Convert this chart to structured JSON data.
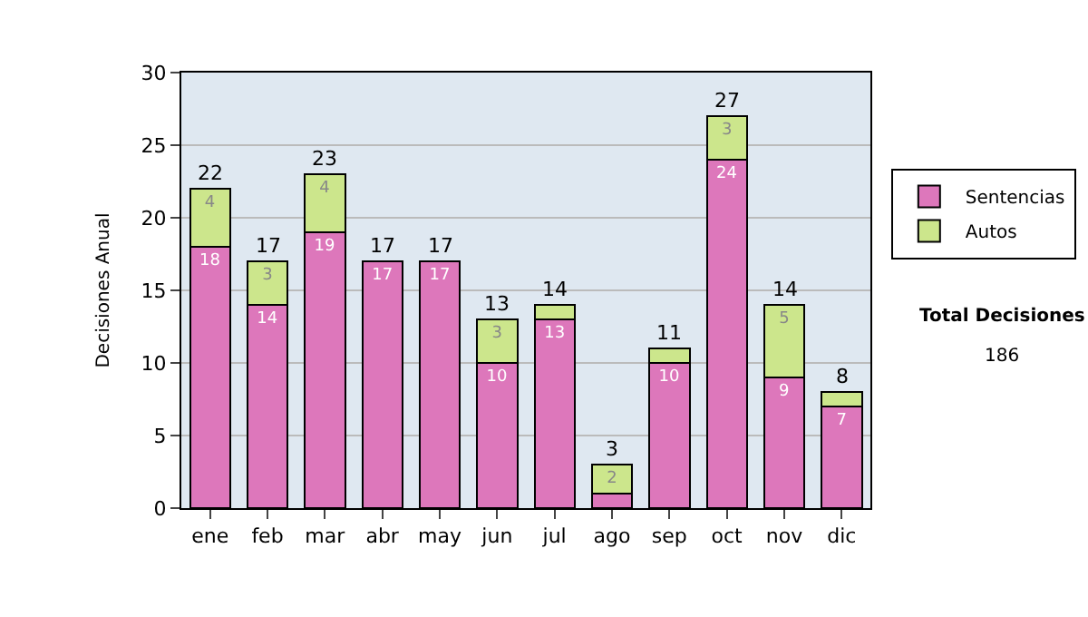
{
  "chart_data": {
    "type": "bar",
    "stacked": true,
    "ylabel": "Decisiones Anual",
    "categories": [
      "ene",
      "feb",
      "mar",
      "abr",
      "may",
      "jun",
      "jul",
      "ago",
      "sep",
      "oct",
      "nov",
      "dic"
    ],
    "series": [
      {
        "name": "Sentencias",
        "color": "#dd77bb",
        "values": [
          18,
          14,
          19,
          17,
          17,
          10,
          13,
          1,
          10,
          24,
          9,
          7
        ],
        "value_labels": [
          "18",
          "14",
          "19",
          "17",
          "17",
          "10",
          "13",
          null,
          "10",
          "24",
          "9",
          "7"
        ]
      },
      {
        "name": "Autos",
        "color": "#cce68c",
        "values": [
          4,
          3,
          4,
          null,
          null,
          3,
          1,
          2,
          1,
          3,
          5,
          1
        ],
        "value_labels": [
          "4",
          "3",
          "4",
          null,
          null,
          "3",
          null,
          "2",
          null,
          "3",
          "5",
          null
        ]
      }
    ],
    "totals": [
      "22",
      "17",
      "23",
      "17",
      "17",
      "13",
      "14",
      "3",
      "11",
      "27",
      "14",
      "8"
    ],
    "ylim": [
      0,
      30
    ],
    "yticks": [
      0,
      5,
      10,
      15,
      20,
      25,
      30
    ],
    "grid": "y",
    "legend": "right",
    "annotations": [
      "Total Decisiones",
      "186"
    ]
  }
}
